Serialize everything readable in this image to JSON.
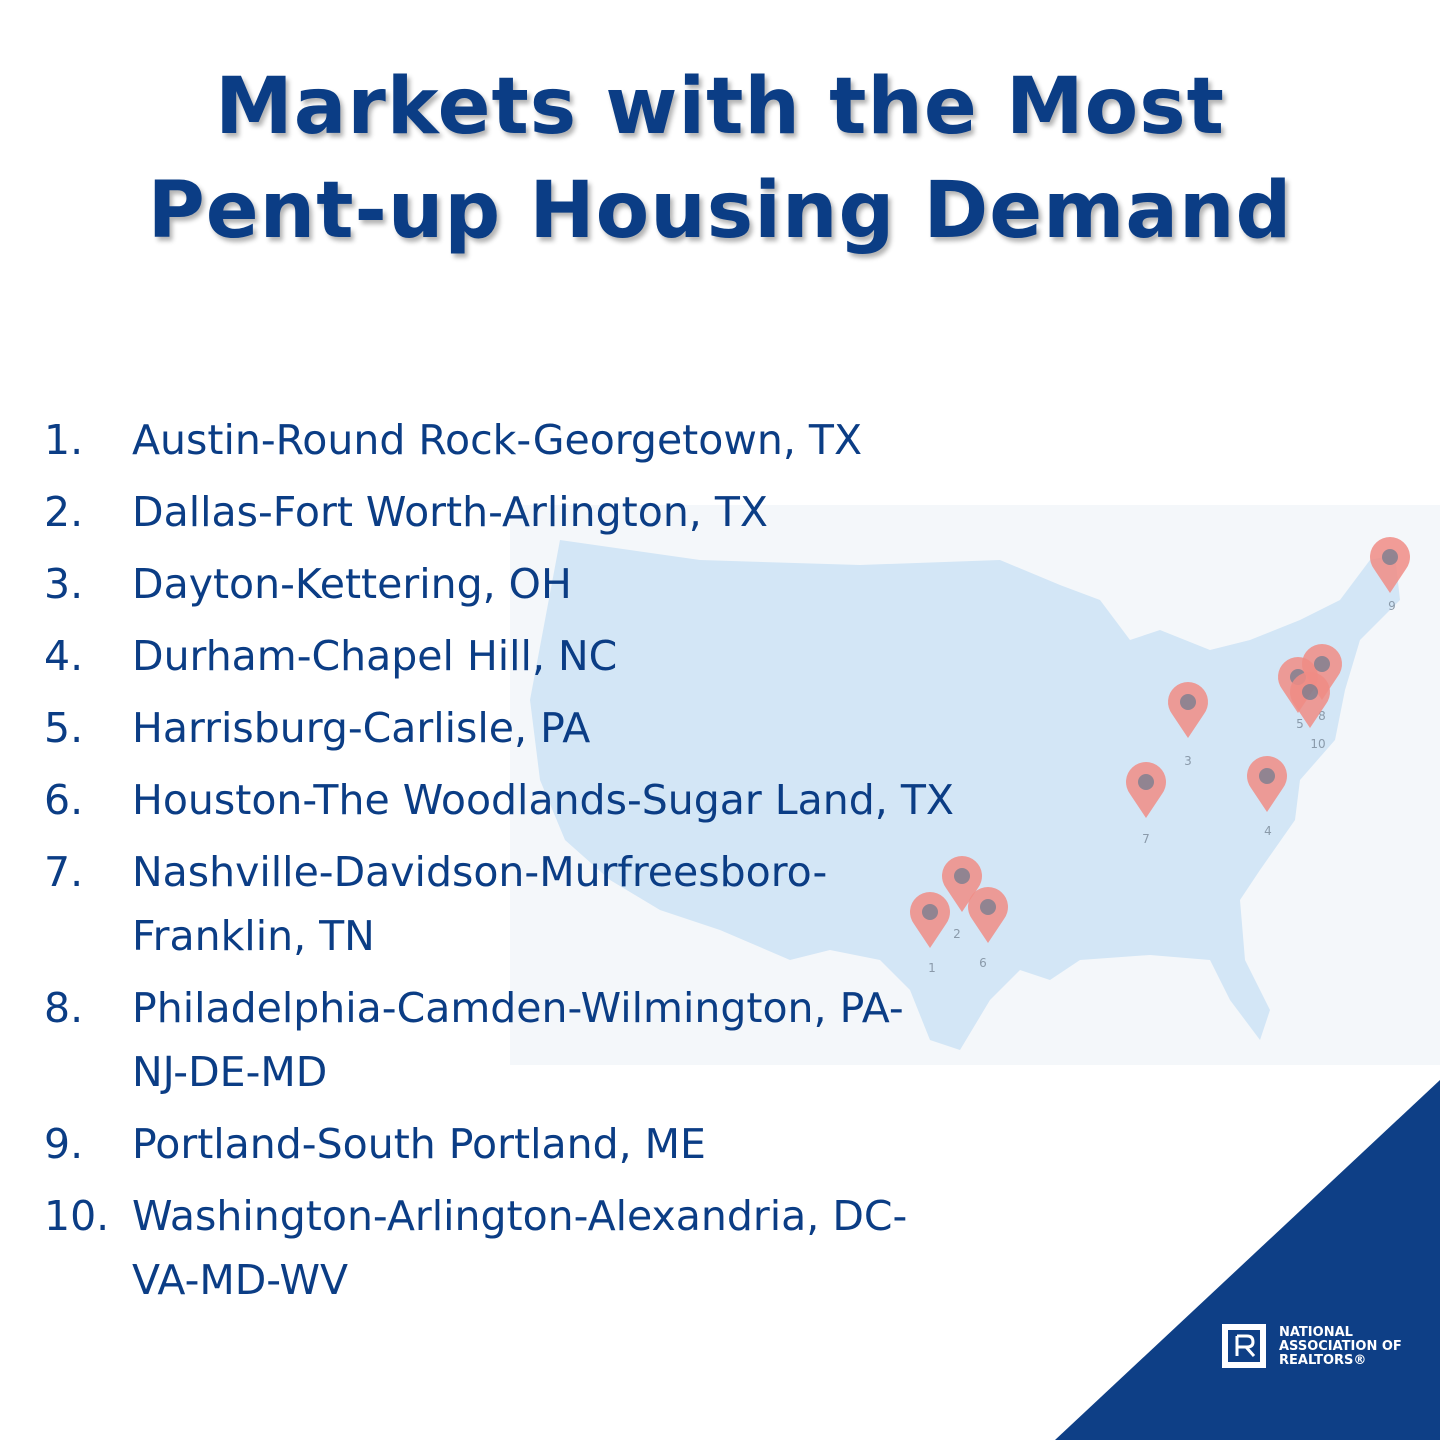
{
  "header": {
    "title": [
      "Markets with the Most",
      "Pent-up Housing Demand"
    ]
  },
  "list": [
    {
      "number": "1.",
      "lines": [
        "Austin-Round Rock-Georgetown, TX"
      ]
    },
    {
      "number": "2.",
      "lines": [
        "Dallas-Fort Worth-Arlington, TX"
      ]
    },
    {
      "number": "3.",
      "lines": [
        "Dayton-Kettering, OH"
      ]
    },
    {
      "number": "4.",
      "lines": [
        "Durham-Chapel Hill, NC"
      ]
    },
    {
      "number": "5.",
      "lines": [
        "Harrisburg-Carlisle, PA"
      ]
    },
    {
      "number": "6.",
      "lines": [
        "Houston-The Woodlands-Sugar Land, TX"
      ]
    },
    {
      "number": "7.",
      "lines": [
        "Nashville-Davidson-Murfreesboro-",
        "Franklin, TN"
      ]
    },
    {
      "number": "8.",
      "lines": [
        "Philadelphia-Camden-Wilmington, PA-",
        "NJ-DE-MD"
      ]
    },
    {
      "number": "9.",
      "lines": [
        "Portland-South Portland, ME"
      ]
    },
    {
      "number": "10.",
      "lines": [
        "Washington-Arlington-Alexandria, DC-",
        "VA-MD-WV"
      ]
    }
  ],
  "map": {
    "pins": [
      "1",
      "2",
      "3",
      "4",
      "5",
      "6",
      "7",
      "8",
      "9",
      "10"
    ]
  },
  "logo": {
    "lines": [
      "NATIONAL",
      "ASSOCIATION OF",
      "REALTORS®"
    ]
  }
}
